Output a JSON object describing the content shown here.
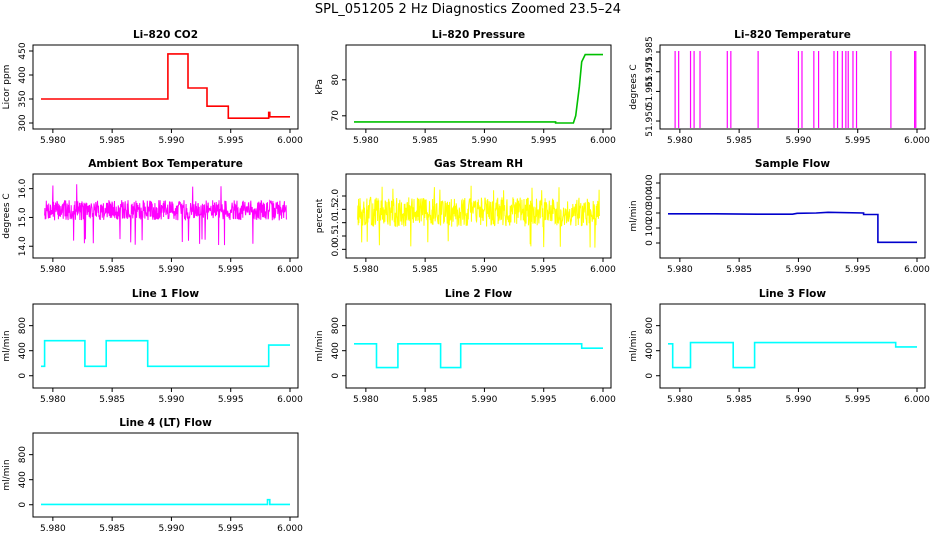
{
  "figure": {
    "title": "SPL_051205  2 Hz Diagnostics Zoomed 23.5–24"
  },
  "colors": {
    "co2": "#ff0000",
    "pressure": "#00c000",
    "temperature": "#ff00ff",
    "ambient": "#ff00ff",
    "rh": "#ffff00",
    "sample_flow": "#0000cc",
    "line_flow": "#00ffff"
  },
  "chart_data": [
    {
      "type": "line",
      "title": "Li–820 CO2",
      "ylabel": "Licor ppm",
      "xlim": [
        5.979,
        6.0
      ],
      "ylim": [
        300,
        450
      ],
      "xticks": [
        "5.980",
        "5.985",
        "5.990",
        "5.995",
        "6.000"
      ],
      "xtick_values": [
        5.98,
        5.985,
        5.99,
        5.995,
        6.0
      ],
      "yticks": [
        "300",
        "350",
        "400",
        "450"
      ],
      "ytick_values": [
        300,
        350,
        400,
        450
      ],
      "color": "#ff0000",
      "series": [
        {
          "x": [
            5.979,
            5.9897,
            5.9897,
            5.9914,
            5.9914,
            5.993,
            5.993,
            5.9948,
            5.9948,
            5.9982,
            5.9982,
            5.9983,
            5.9983,
            6.0
          ],
          "y": [
            350,
            350,
            444,
            444,
            373,
            373,
            335,
            335,
            310,
            310,
            322,
            322,
            313,
            313
          ]
        }
      ]
    },
    {
      "type": "line",
      "title": "Li–820 Pressure",
      "ylabel": "kPa",
      "xlim": [
        5.979,
        6.0
      ],
      "ylim": [
        68,
        88
      ],
      "xticks": [
        "5.980",
        "5.985",
        "5.990",
        "5.995",
        "6.000"
      ],
      "xtick_values": [
        5.98,
        5.985,
        5.99,
        5.995,
        6.0
      ],
      "yticks": [
        "70",
        "80"
      ],
      "ytick_values": [
        70,
        80
      ],
      "color": "#00c000",
      "series": [
        {
          "x": [
            5.979,
            5.996,
            5.996,
            5.9975,
            5.9977,
            5.998,
            5.9982,
            5.9985,
            6.0
          ],
          "y": [
            68.3,
            68.3,
            68.0,
            68.0,
            70.0,
            78.0,
            85.0,
            87.0,
            87.0
          ]
        }
      ]
    },
    {
      "type": "line",
      "title": "Li–820 Temperature",
      "ylabel": "degrees C",
      "xlim": [
        5.979,
        6.0
      ],
      "ylim": [
        51.949,
        51.9855
      ],
      "xticks": [
        "5.980",
        "5.985",
        "5.990",
        "5.995",
        "6.000"
      ],
      "xtick_values": [
        5.98,
        5.985,
        5.99,
        5.995,
        6.0
      ],
      "yticks": [
        "51.950",
        "51.965",
        "51.975",
        "51.985"
      ],
      "ytick_values": [
        51.95,
        51.965,
        51.975,
        51.985
      ],
      "color": "#ff00ff",
      "series": [
        {
          "x": [
            5.979,
            5.9796,
            5.9798,
            5.9808,
            5.981,
            5.9815,
            5.9818,
            5.984,
            5.9843,
            5.9865,
            5.9899,
            5.9902,
            5.9912,
            5.9917,
            5.993,
            5.9932,
            5.9937,
            5.9941,
            5.9943,
            5.9949,
            5.9978,
            5.9998,
            6.0
          ],
          "y": [
            51.9455,
            51.9458,
            51.9458,
            51.9458,
            51.9458,
            51.9458,
            51.9458,
            51.9458,
            51.9458,
            51.9458,
            51.9458,
            51.9458,
            51.9458,
            51.9458,
            51.9458,
            51.9458,
            51.9458,
            51.9458,
            51.9458,
            51.9458,
            51.9458,
            51.9458,
            51.9458
          ]
        }
      ],
      "spikes_x": [
        5.9796,
        5.9799,
        5.9809,
        5.9812,
        5.9817,
        5.984,
        5.9843,
        5.9866,
        5.99,
        5.9903,
        5.9913,
        5.9917,
        5.993,
        5.9933,
        5.9937,
        5.994,
        5.9942,
        5.9946,
        5.9949,
        5.9978,
        5.9998,
        5.9999
      ],
      "spike_top": 51.9855,
      "base": 51.9458
    },
    {
      "type": "line",
      "title": "Ambient Box Temperature",
      "ylabel": "degrees C",
      "xlim": [
        5.979,
        6.0
      ],
      "ylim": [
        13.8,
        16.3
      ],
      "xticks": [
        "5.980",
        "5.985",
        "5.990",
        "5.995",
        "6.000"
      ],
      "xtick_values": [
        5.98,
        5.985,
        5.99,
        5.995,
        6.0
      ],
      "yticks": [
        "14.0",
        "15.0",
        "16.0"
      ],
      "ytick_values": [
        14,
        15,
        16
      ],
      "color": "#ff00ff",
      "noise": {
        "mean": 15.25,
        "amp": 0.35,
        "spike_low": 14.0,
        "spike_high": 16.2,
        "seed": 7,
        "n": 700
      }
    },
    {
      "type": "line",
      "title": "Gas Stream RH",
      "ylabel": "percent",
      "xlim": [
        5.979,
        6.0
      ],
      "ylim": [
        -0.1,
        2.6
      ],
      "xticks": [
        "5.980",
        "5.985",
        "5.990",
        "5.995",
        "6.000"
      ],
      "xtick_values": [
        5.98,
        5.985,
        5.99,
        5.995,
        6.0
      ],
      "yticks": [
        "0.0",
        "0.5",
        "1.0",
        "1.5",
        "2.0"
      ],
      "ytick_values": [
        0,
        0.5,
        1,
        1.5,
        2
      ],
      "color": "#ffff00",
      "noise": {
        "mean": 1.4,
        "amp": 0.55,
        "spike_low": 0.05,
        "spike_high": 2.4,
        "seed": 13,
        "n": 700
      }
    },
    {
      "type": "line",
      "title": "Sample Flow",
      "ylabel": "ml/min",
      "xlim": [
        5.979,
        6.0
      ],
      "ylim": [
        -60,
        420
      ],
      "xticks": [
        "5.980",
        "5.985",
        "5.990",
        "5.995",
        "6.000"
      ],
      "xtick_values": [
        5.98,
        5.985,
        5.99,
        5.995,
        6.0
      ],
      "yticks": [
        "0",
        "100",
        "200",
        "300",
        "400"
      ],
      "ytick_values": [
        0,
        100,
        200,
        300,
        400
      ],
      "color": "#0000cc",
      "series": [
        {
          "x": [
            5.979,
            5.983,
            5.9865,
            5.9895,
            5.9899,
            5.9915,
            5.9925,
            5.9955,
            5.9955,
            5.9967,
            5.9967,
            6.0
          ],
          "y": [
            195,
            195,
            192,
            192,
            198,
            200,
            205,
            200,
            190,
            190,
            5,
            5
          ]
        }
      ]
    },
    {
      "type": "line",
      "title": "Line 1 Flow",
      "ylabel": "ml/min",
      "xlim": [
        5.979,
        6.0
      ],
      "ylim": [
        -100,
        1050
      ],
      "xticks": [
        "5.980",
        "5.985",
        "5.990",
        "5.995",
        "6.000"
      ],
      "xtick_values": [
        5.98,
        5.985,
        5.99,
        5.995,
        6.0
      ],
      "yticks": [
        "0",
        "400",
        "800"
      ],
      "ytick_values": [
        0,
        400,
        800
      ],
      "color": "#00ffff",
      "series": [
        {
          "x": [
            5.979,
            5.9793,
            5.9793,
            5.9827,
            5.9827,
            5.9845,
            5.9845,
            5.988,
            5.988,
            5.9982,
            5.9982,
            6.0
          ],
          "y": [
            150,
            150,
            560,
            560,
            150,
            150,
            560,
            560,
            150,
            150,
            490,
            490
          ]
        }
      ]
    },
    {
      "type": "line",
      "title": "Line 2 Flow",
      "ylabel": "ml/min",
      "xlim": [
        5.979,
        6.0
      ],
      "ylim": [
        -100,
        1050
      ],
      "xticks": [
        "5.980",
        "5.985",
        "5.990",
        "5.995",
        "6.000"
      ],
      "xtick_values": [
        5.98,
        5.985,
        5.99,
        5.995,
        6.0
      ],
      "yticks": [
        "0",
        "400",
        "800"
      ],
      "ytick_values": [
        0,
        400,
        800
      ],
      "color": "#00ffff",
      "series": [
        {
          "x": [
            5.979,
            5.9809,
            5.9809,
            5.9827,
            5.9827,
            5.9863,
            5.9863,
            5.988,
            5.988,
            5.9982,
            5.9982,
            6.0
          ],
          "y": [
            510,
            510,
            130,
            130,
            510,
            510,
            130,
            130,
            510,
            510,
            440,
            440
          ]
        }
      ]
    },
    {
      "type": "line",
      "title": "Line 3 Flow",
      "ylabel": "ml/min",
      "xlim": [
        5.979,
        6.0
      ],
      "ylim": [
        -100,
        1050
      ],
      "xticks": [
        "5.980",
        "5.985",
        "5.990",
        "5.995",
        "6.000"
      ],
      "xtick_values": [
        5.98,
        5.985,
        5.99,
        5.995,
        6.0
      ],
      "yticks": [
        "0",
        "400",
        "800"
      ],
      "ytick_values": [
        0,
        400,
        800
      ],
      "color": "#00ffff",
      "series": [
        {
          "x": [
            5.979,
            5.9794,
            5.9794,
            5.9809,
            5.9809,
            5.9845,
            5.9845,
            5.9863,
            5.9863,
            5.9982,
            5.9982,
            6.0
          ],
          "y": [
            510,
            510,
            130,
            130,
            530,
            530,
            130,
            130,
            530,
            530,
            460,
            460
          ]
        }
      ]
    },
    {
      "type": "line",
      "title": "Line 4 (LT) Flow",
      "ylabel": "ml/min",
      "xlim": [
        5.979,
        6.0
      ],
      "ylim": [
        -100,
        1050
      ],
      "xticks": [
        "5.980",
        "5.985",
        "5.990",
        "5.995",
        "6.000"
      ],
      "xtick_values": [
        5.98,
        5.985,
        5.99,
        5.995,
        6.0
      ],
      "yticks": [
        "0",
        "400",
        "800"
      ],
      "ytick_values": [
        0,
        400,
        800
      ],
      "color": "#00ffff",
      "series": [
        {
          "x": [
            5.979,
            5.9981,
            5.9981,
            5.9983,
            5.9983,
            6.0
          ],
          "y": [
            5,
            5,
            80,
            80,
            5,
            5
          ]
        }
      ]
    }
  ]
}
